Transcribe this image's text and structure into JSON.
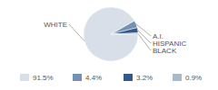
{
  "chart_data": {
    "type": "pie",
    "categories": [
      "WHITE",
      "A.I.",
      "HISPANIC",
      "BLACK"
    ],
    "values": [
      91.5,
      4.4,
      3.2,
      0.9
    ],
    "value_labels": [
      "91.5%",
      "4.4%",
      "3.2%",
      "0.9%"
    ],
    "colors": [
      "#d9dfe8",
      "#7391b2",
      "#31598a",
      "#a9bace"
    ],
    "data_labels": true,
    "legend": "bottom"
  }
}
